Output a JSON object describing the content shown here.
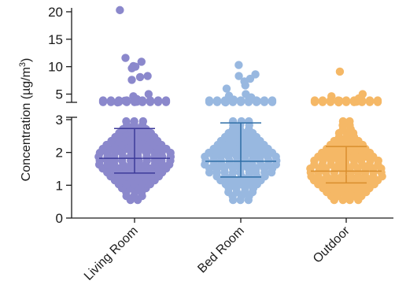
{
  "chart_data": {
    "type": "scatter",
    "subtype": "scatter-dot plot with mean and error bars, broken y-axis",
    "ylabel": "Concentration (µg/m",
    "ylabel_sup": "3",
    "ylabel_close": ")",
    "categories": [
      "Living Room",
      "Bed Room",
      "Outdoor"
    ],
    "y_axis": {
      "lower_segment": {
        "range": [
          0,
          3
        ],
        "ticks": [
          "0",
          "1",
          "2",
          "3"
        ]
      },
      "upper_segment": {
        "range": [
          3.5,
          21
        ],
        "ticks": [
          "5",
          "10",
          "15",
          "20"
        ]
      },
      "break_between": [
        3,
        3.5
      ]
    },
    "grid": false,
    "legend": "none",
    "series": [
      {
        "category": "Living Room",
        "color": "#8b88cc",
        "summary_color": "#3d3a9a",
        "mean": 1.82,
        "err_low": 1.37,
        "err_high": 2.73,
        "high_points": [
          20.3,
          11.6,
          10.9,
          10.1,
          10.0,
          9.7,
          8.3,
          8.1,
          7.6,
          5.0,
          4.6,
          4.1,
          3.8,
          3.6,
          3.5
        ]
      },
      {
        "category": "Bed Room",
        "color": "#98b8e0",
        "summary_color": "#2e6ea6",
        "mean": 1.73,
        "err_low": 1.25,
        "err_high": 2.9,
        "high_points": [
          10.3,
          8.6,
          8.3,
          7.8,
          7.3,
          6.6,
          6.0,
          5.0,
          4.7,
          4.4,
          4.0,
          3.7,
          3.5
        ]
      },
      {
        "category": "Outdoor",
        "color": "#f5b866",
        "summary_color": "#d98e2e",
        "mean": 1.43,
        "err_low": 1.07,
        "err_high": 2.18,
        "high_points": [
          9.1,
          5.0,
          4.6,
          4.2,
          3.8,
          3.6,
          3.5
        ]
      }
    ]
  }
}
